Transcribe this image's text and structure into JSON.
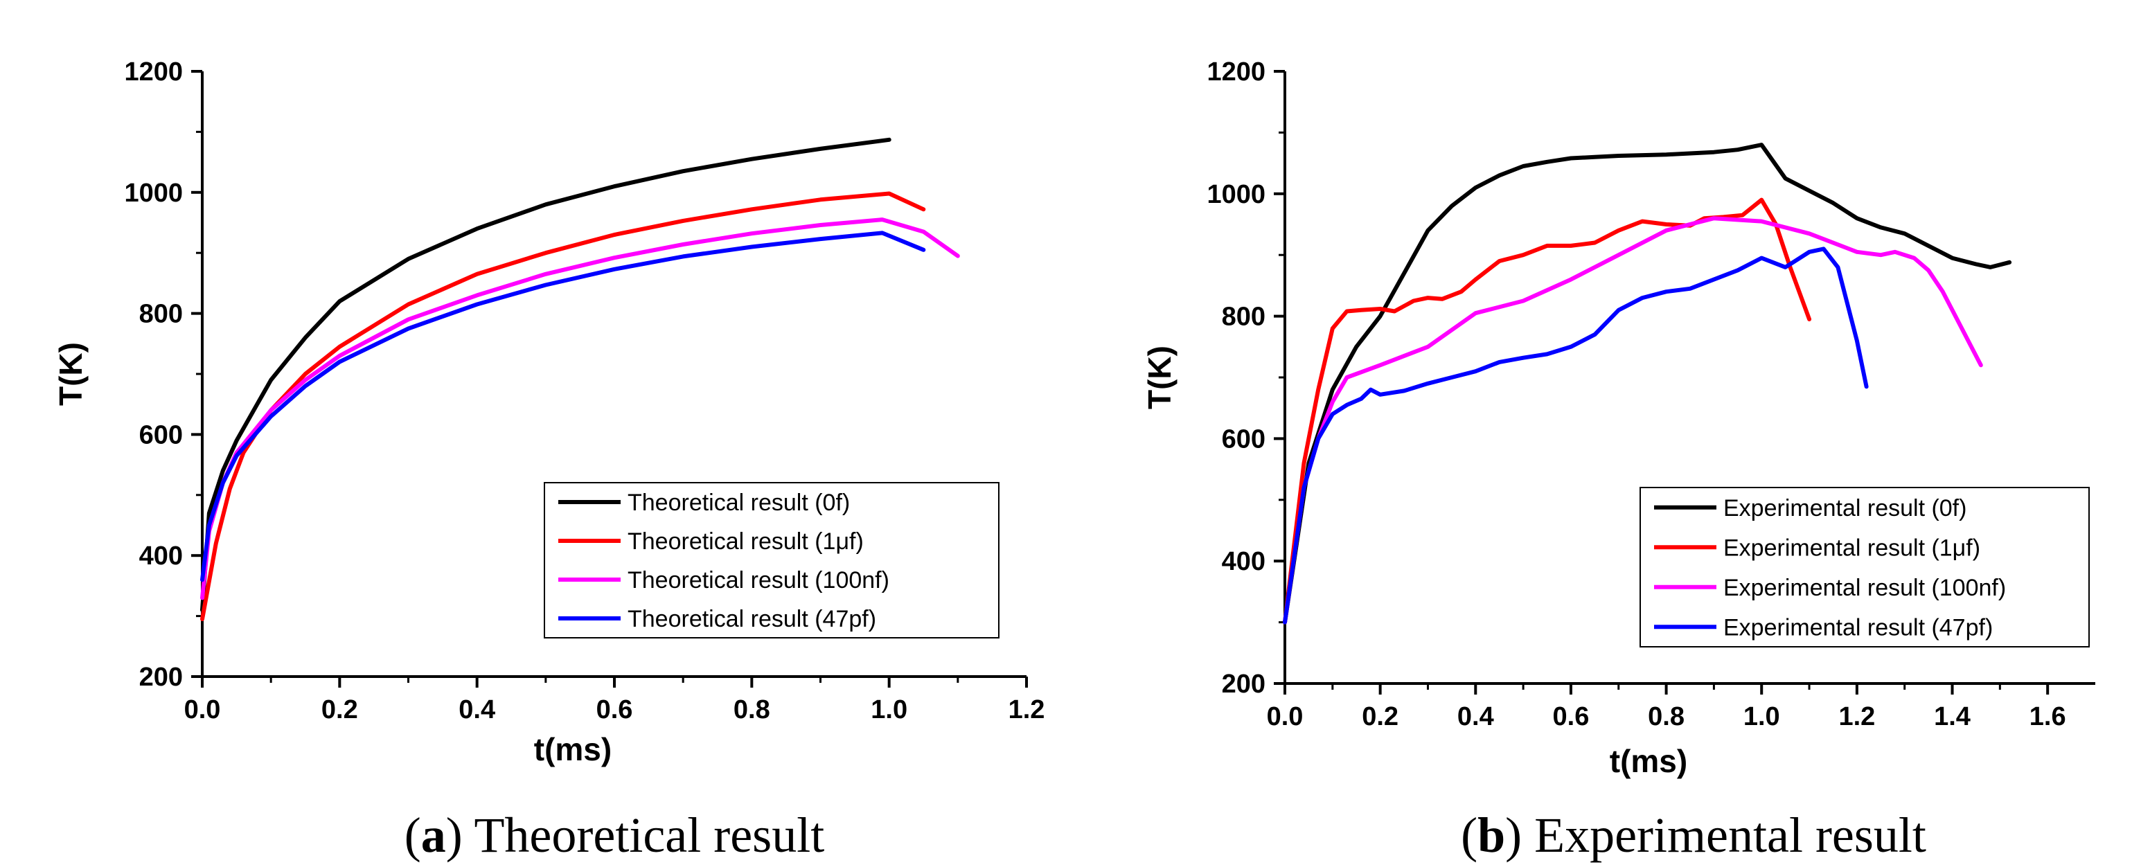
{
  "chart_data": [
    {
      "type": "line",
      "caption": {
        "letter": "a",
        "text": "Theoretical result"
      },
      "xlabel": "t(ms)",
      "ylabel": "T(K)",
      "xlim": [
        0,
        1.2
      ],
      "ylim": [
        200,
        1200
      ],
      "xticks": [
        "0.0",
        "0.2",
        "0.4",
        "0.6",
        "0.8",
        "1.0",
        "1.2"
      ],
      "xtick_values": [
        0,
        0.2,
        0.4,
        0.6,
        0.8,
        1.0,
        1.2
      ],
      "yticks": [
        "200",
        "400",
        "600",
        "800",
        "1000",
        "1200"
      ],
      "ytick_values": [
        200,
        400,
        600,
        800,
        1000,
        1200
      ],
      "legend_position": "bottom-right",
      "series": [
        {
          "name": "Theoretical result (0f)",
          "color": "#000000",
          "x": [
            0,
            0.01,
            0.03,
            0.05,
            0.08,
            0.1,
            0.15,
            0.2,
            0.3,
            0.4,
            0.5,
            0.6,
            0.7,
            0.8,
            0.9,
            1.0
          ],
          "y": [
            310,
            470,
            540,
            590,
            650,
            690,
            760,
            820,
            890,
            940,
            980,
            1010,
            1035,
            1055,
            1072,
            1087
          ]
        },
        {
          "name": "Theoretical result (1μf)",
          "color": "#ff0000",
          "x": [
            0,
            0.02,
            0.04,
            0.06,
            0.1,
            0.15,
            0.2,
            0.3,
            0.4,
            0.5,
            0.6,
            0.7,
            0.8,
            0.9,
            1.0,
            1.05
          ],
          "y": [
            295,
            420,
            510,
            570,
            640,
            700,
            745,
            815,
            865,
            900,
            930,
            953,
            972,
            988,
            998,
            972
          ]
        },
        {
          "name": "Theoretical result (100nf)",
          "color": "#ff00ff",
          "x": [
            0,
            0.01,
            0.03,
            0.05,
            0.1,
            0.15,
            0.2,
            0.3,
            0.4,
            0.5,
            0.6,
            0.7,
            0.8,
            0.9,
            0.99,
            1.05,
            1.1
          ],
          "y": [
            330,
            440,
            520,
            570,
            640,
            690,
            730,
            790,
            830,
            865,
            892,
            914,
            932,
            946,
            955,
            935,
            895
          ]
        },
        {
          "name": "Theoretical result (47pf)",
          "color": "#0000ff",
          "x": [
            0,
            0.01,
            0.03,
            0.05,
            0.1,
            0.15,
            0.2,
            0.3,
            0.4,
            0.5,
            0.6,
            0.7,
            0.8,
            0.9,
            0.99,
            1.05
          ],
          "y": [
            360,
            450,
            520,
            565,
            630,
            680,
            720,
            775,
            815,
            847,
            873,
            894,
            910,
            923,
            933,
            905
          ]
        }
      ]
    },
    {
      "type": "line",
      "caption": {
        "letter": "b",
        "text": "Experimental result"
      },
      "xlabel": "t(ms)",
      "ylabel": "T(K)",
      "xlim": [
        0,
        1.7
      ],
      "ylim": [
        200,
        1200
      ],
      "xticks": [
        "0.0",
        "0.2",
        "0.4",
        "0.6",
        "0.8",
        "1.0",
        "1.2",
        "1.4",
        "1.6"
      ],
      "xtick_values": [
        0,
        0.2,
        0.4,
        0.6,
        0.8,
        1.0,
        1.2,
        1.4,
        1.6
      ],
      "yticks": [
        "200",
        "400",
        "600",
        "800",
        "1000",
        "1200"
      ],
      "ytick_values": [
        200,
        400,
        600,
        800,
        1000,
        1200
      ],
      "legend_position": "bottom-right",
      "series": [
        {
          "name": "Experimental result (0f)",
          "color": "#000000",
          "x": [
            0,
            0.05,
            0.1,
            0.15,
            0.2,
            0.25,
            0.3,
            0.35,
            0.4,
            0.45,
            0.5,
            0.55,
            0.6,
            0.65,
            0.7,
            0.75,
            0.8,
            0.85,
            0.9,
            0.95,
            1.0,
            1.05,
            1.1,
            1.15,
            1.2,
            1.25,
            1.3,
            1.35,
            1.4,
            1.45,
            1.48,
            1.52
          ],
          "y": [
            300,
            560,
            680,
            750,
            800,
            870,
            940,
            980,
            1010,
            1030,
            1045,
            1052,
            1058,
            1060,
            1062,
            1063,
            1064,
            1066,
            1068,
            1072,
            1080,
            1025,
            1005,
            985,
            960,
            945,
            935,
            915,
            895,
            885,
            880,
            888
          ]
        },
        {
          "name": "Experimental result (1μf)",
          "color": "#ff0000",
          "x": [
            0,
            0.04,
            0.07,
            0.1,
            0.13,
            0.16,
            0.2,
            0.23,
            0.27,
            0.3,
            0.33,
            0.37,
            0.4,
            0.45,
            0.5,
            0.55,
            0.6,
            0.65,
            0.7,
            0.75,
            0.8,
            0.85,
            0.88,
            0.92,
            0.96,
            1.0,
            1.03,
            1.06,
            1.1
          ],
          "y": [
            300,
            560,
            680,
            780,
            808,
            810,
            812,
            808,
            825,
            830,
            828,
            840,
            860,
            890,
            900,
            915,
            915,
            920,
            940,
            955,
            950,
            948,
            960,
            962,
            965,
            990,
            950,
            880,
            795
          ]
        },
        {
          "name": "Experimental result (100nf)",
          "color": "#ff00ff",
          "x": [
            0,
            0.04,
            0.07,
            0.1,
            0.13,
            0.2,
            0.3,
            0.4,
            0.5,
            0.6,
            0.7,
            0.8,
            0.9,
            1.0,
            1.1,
            1.2,
            1.25,
            1.28,
            1.32,
            1.35,
            1.38,
            1.42,
            1.46
          ],
          "y": [
            300,
            520,
            600,
            660,
            700,
            720,
            750,
            805,
            825,
            860,
            900,
            940,
            960,
            955,
            935,
            905,
            900,
            905,
            895,
            875,
            840,
            780,
            720
          ]
        },
        {
          "name": "Experimental result (47pf)",
          "color": "#0000ff",
          "x": [
            0,
            0.04,
            0.07,
            0.1,
            0.13,
            0.16,
            0.18,
            0.2,
            0.25,
            0.3,
            0.35,
            0.4,
            0.45,
            0.5,
            0.55,
            0.6,
            0.65,
            0.7,
            0.75,
            0.8,
            0.85,
            0.9,
            0.95,
            1.0,
            1.05,
            1.1,
            1.13,
            1.16,
            1.2,
            1.22
          ],
          "y": [
            300,
            520,
            600,
            640,
            655,
            665,
            680,
            672,
            678,
            690,
            700,
            710,
            725,
            732,
            738,
            750,
            770,
            810,
            830,
            840,
            845,
            860,
            875,
            895,
            880,
            905,
            910,
            880,
            760,
            685
          ]
        }
      ]
    }
  ]
}
